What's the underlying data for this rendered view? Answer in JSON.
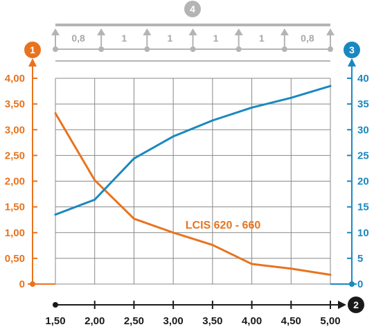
{
  "chart_data": {
    "type": "line",
    "title": "",
    "x_ticks": [
      "1,50",
      "2,00",
      "2,50",
      "3,00",
      "3,50",
      "4,00",
      "4,50",
      "5,00"
    ],
    "x_range": [
      1.5,
      5.0
    ],
    "y_left_ticks": [
      "0",
      "0,50",
      "1,00",
      "1,50",
      "2,00",
      "2,50",
      "3,00",
      "3,50",
      "4,00"
    ],
    "y_left_range": [
      0,
      4
    ],
    "y_right_ticks": [
      "0",
      "5",
      "10",
      "15",
      "20",
      "25",
      "30",
      "35",
      "40"
    ],
    "y_right_range": [
      0,
      40
    ],
    "grid": true,
    "badges": {
      "left_axis": "1",
      "x_axis": "2",
      "right_axis": "3",
      "span_diagram": "4"
    },
    "span_labels": [
      "0,8",
      "1",
      "1",
      "1",
      "1",
      "0,8"
    ],
    "colors": {
      "left": "#e8731e",
      "right": "#1a88c0",
      "grid": "#888888",
      "diagram": "#b4b4b4",
      "axis_x": "#1a1a1a"
    },
    "series": [
      {
        "name": "LCIS 620 - 660",
        "axis": "left",
        "color": "#e8731e",
        "x": [
          1.5,
          2.0,
          2.5,
          3.0,
          3.5,
          4.0,
          4.5,
          5.0
        ],
        "y": [
          3.32,
          2.02,
          1.27,
          1.0,
          0.76,
          0.39,
          0.3,
          0.18
        ]
      },
      {
        "axis": "right",
        "color": "#1a88c0",
        "x": [
          1.5,
          2.0,
          2.5,
          3.0,
          3.5,
          4.0,
          4.5,
          5.0
        ],
        "y": [
          13.5,
          16.4,
          24.4,
          28.7,
          31.8,
          34.3,
          36.2,
          38.5
        ]
      }
    ]
  }
}
